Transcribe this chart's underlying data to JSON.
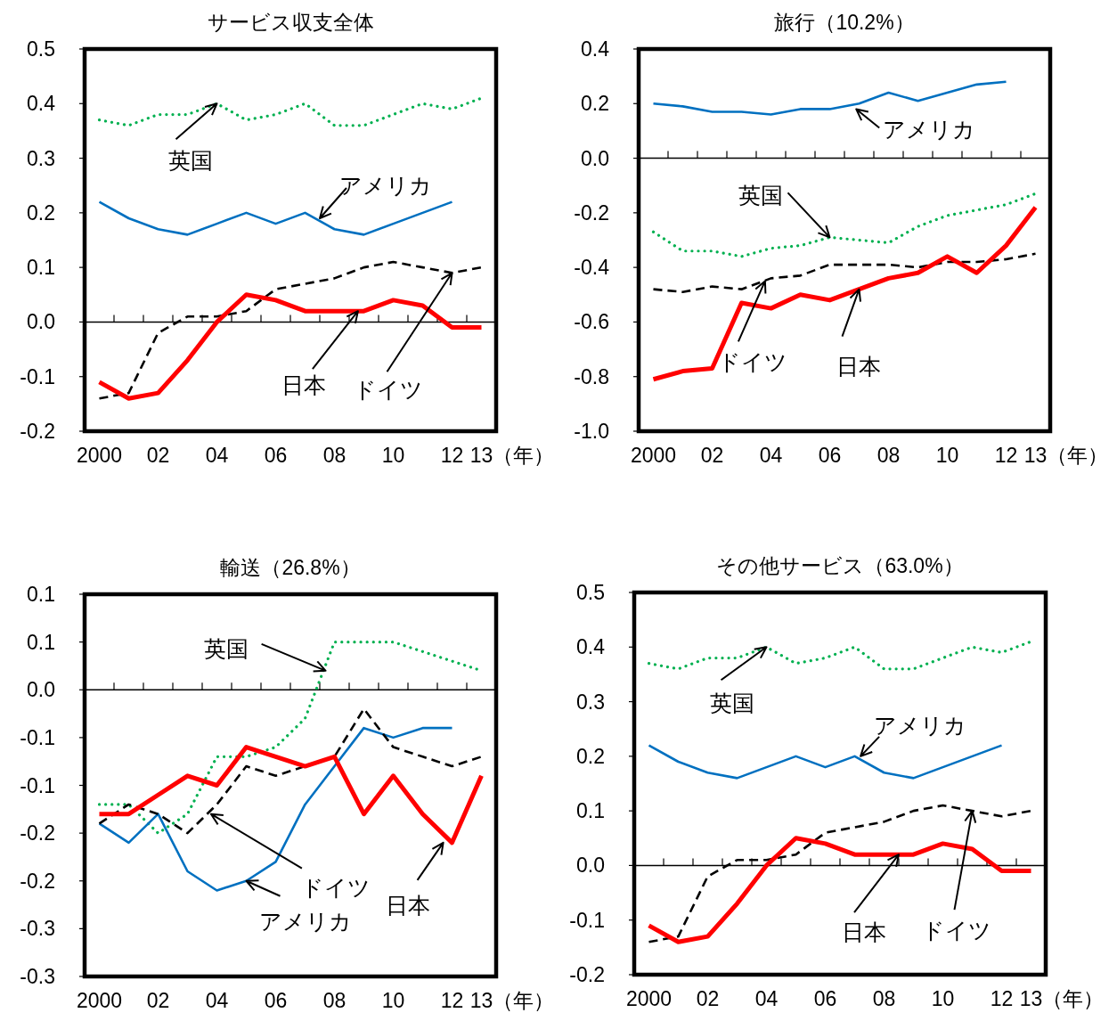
{
  "chart_data": [
    {
      "type": "line",
      "title": "サービス収支全体",
      "xlabel": "（年）",
      "x": [
        2000,
        2001,
        2002,
        2003,
        2004,
        2005,
        2006,
        2007,
        2008,
        2009,
        2010,
        2011,
        2012,
        2013
      ],
      "xlim": [
        1999.5,
        2013.5
      ],
      "xticks": [
        {
          "value": 2000,
          "label": "2000"
        },
        {
          "value": 2002,
          "label": "02"
        },
        {
          "value": 2004,
          "label": "04"
        },
        {
          "value": 2006,
          "label": "06"
        },
        {
          "value": 2008,
          "label": "08"
        },
        {
          "value": 2010,
          "label": "10"
        },
        {
          "value": 2012,
          "label": "12"
        },
        {
          "value": 2013,
          "label": "13"
        },
        {
          "value": 2000.5,
          "label": null
        },
        {
          "value": 2001.5,
          "label": null
        },
        {
          "value": 2002.5,
          "label": null
        },
        {
          "value": 2003.5,
          "label": null
        },
        {
          "value": 2004.5,
          "label": null
        },
        {
          "value": 2005.5,
          "label": null
        },
        {
          "value": 2006.5,
          "label": null
        },
        {
          "value": 2007.5,
          "label": null
        },
        {
          "value": 2008.5,
          "label": null
        },
        {
          "value": 2009.5,
          "label": null
        },
        {
          "value": 2010.5,
          "label": null
        },
        {
          "value": 2011.5,
          "label": null
        },
        {
          "value": 2012.5,
          "label": null
        }
      ],
      "ylim": [
        -0.2,
        0.5
      ],
      "yticks": [
        -0.2,
        -0.1,
        {
          "value": 0,
          "label": "0.0"
        },
        0.1,
        0.2,
        0.3,
        0.4,
        0.5
      ],
      "series": [
        {
          "color": "#00b050",
          "line_style": "dotted",
          "values": [
            0.37,
            0.36,
            0.38,
            0.38,
            0.4,
            0.37,
            0.38,
            0.4,
            0.36,
            0.36,
            0.38,
            0.4,
            0.39,
            0.41
          ]
        },
        {
          "color": "#0070c0",
          "line_style": "solid",
          "values": [
            0.22,
            0.19,
            0.17,
            0.16,
            0.18,
            0.2,
            0.18,
            0.2,
            0.17,
            0.16,
            0.18,
            0.2,
            0.22,
            null
          ]
        },
        {
          "color": "#000000",
          "line_style": "dashed",
          "values": [
            -0.14,
            -0.13,
            -0.02,
            0.01,
            0.01,
            0.02,
            0.06,
            0.07,
            0.08,
            0.1,
            0.11,
            0.1,
            0.09,
            0.1
          ]
        },
        {
          "color": "#ff0000",
          "line_style": "solid",
          "values": [
            -0.11,
            -0.14,
            -0.13,
            -0.07,
            0.0,
            0.05,
            0.04,
            0.02,
            0.02,
            0.02,
            0.04,
            0.03,
            -0.01,
            -0.01
          ]
        }
      ],
      "annotations": [
        {
          "text": "英国",
          "x": 2004,
          "y": 0.4
        },
        {
          "text": "アメリカ",
          "x": 2007.5,
          "y": 0.19
        },
        {
          "text": "ドイツ",
          "x": 2012,
          "y": 0.09
        },
        {
          "text": "日本",
          "x": 2008.8,
          "y": 0.02
        }
      ]
    },
    {
      "type": "line",
      "title": "旅行（10.2%）",
      "xlabel": "（年）",
      "x": [
        2000,
        2001,
        2002,
        2003,
        2004,
        2005,
        2006,
        2007,
        2008,
        2009,
        2010,
        2011,
        2012,
        2013
      ],
      "xlim": [
        1999.5,
        2013.5
      ],
      "xticks": [
        {
          "value": 2000,
          "label": "2000"
        },
        {
          "value": 2002,
          "label": "02"
        },
        {
          "value": 2004,
          "label": "04"
        },
        {
          "value": 2006,
          "label": "06"
        },
        {
          "value": 2008,
          "label": "08"
        },
        {
          "value": 2010,
          "label": "10"
        },
        {
          "value": 2012,
          "label": "12"
        },
        {
          "value": 2013,
          "label": "13"
        },
        {
          "value": 2000.5,
          "label": null
        },
        {
          "value": 2001.5,
          "label": null
        },
        {
          "value": 2002.5,
          "label": null
        },
        {
          "value": 2003.5,
          "label": null
        },
        {
          "value": 2004.5,
          "label": null
        },
        {
          "value": 2005.5,
          "label": null
        },
        {
          "value": 2006.5,
          "label": null
        },
        {
          "value": 2007.5,
          "label": null
        },
        {
          "value": 2008.5,
          "label": null
        },
        {
          "value": 2009.5,
          "label": null
        },
        {
          "value": 2010.5,
          "label": null
        },
        {
          "value": 2011.5,
          "label": null
        },
        {
          "value": 2012.5,
          "label": null
        }
      ],
      "ylim": [
        -1.0,
        0.4
      ],
      "yticks": [
        {
          "value": -1,
          "label": "-1.0"
        },
        -0.8,
        -0.6,
        -0.4,
        -0.2,
        {
          "value": 0,
          "label": "0.0"
        },
        0.2,
        0.4
      ],
      "series": [
        {
          "color": "#00b050",
          "line_style": "dotted",
          "values": [
            -0.27,
            -0.34,
            -0.34,
            -0.36,
            -0.33,
            -0.32,
            -0.29,
            -0.3,
            -0.31,
            -0.25,
            -0.21,
            -0.19,
            -0.17,
            -0.13
          ]
        },
        {
          "color": "#0070c0",
          "line_style": "solid",
          "values": [
            0.2,
            0.19,
            0.17,
            0.17,
            0.16,
            0.18,
            0.18,
            0.2,
            0.24,
            0.21,
            0.24,
            0.27,
            0.28,
            null
          ]
        },
        {
          "color": "#000000",
          "line_style": "dashed",
          "values": [
            -0.48,
            -0.49,
            -0.47,
            -0.48,
            -0.44,
            -0.43,
            -0.39,
            -0.39,
            -0.39,
            -0.4,
            -0.38,
            -0.38,
            -0.37,
            -0.35
          ]
        },
        {
          "color": "#ff0000",
          "line_style": "solid",
          "values": [
            -0.81,
            -0.78,
            -0.77,
            -0.53,
            -0.55,
            -0.5,
            -0.52,
            -0.48,
            -0.44,
            -0.42,
            -0.36,
            -0.42,
            -0.32,
            -0.18
          ]
        }
      ],
      "annotations": [
        {
          "text": "英国",
          "x": 2006,
          "y": -0.29
        },
        {
          "text": "アメリカ",
          "x": 2006.9,
          "y": 0.18
        },
        {
          "text": "ドイツ",
          "x": 2003.8,
          "y": -0.45
        },
        {
          "text": "日本",
          "x": 2007,
          "y": -0.48
        }
      ]
    },
    {
      "type": "line",
      "title": "輸送（26.8%）",
      "xlabel": "（年）",
      "x": [
        2000,
        2001,
        2002,
        2003,
        2004,
        2005,
        2006,
        2007,
        2008,
        2009,
        2010,
        2011,
        2012,
        2013
      ],
      "xlim": [
        1999.5,
        2013.5
      ],
      "xticks": [
        {
          "value": 2000,
          "label": "2000"
        },
        {
          "value": 2002,
          "label": "02"
        },
        {
          "value": 2004,
          "label": "04"
        },
        {
          "value": 2006,
          "label": "06"
        },
        {
          "value": 2008,
          "label": "08"
        },
        {
          "value": 2010,
          "label": "10"
        },
        {
          "value": 2012,
          "label": "12"
        },
        {
          "value": 2013,
          "label": "13"
        },
        {
          "value": 2000.5,
          "label": null
        },
        {
          "value": 2001.5,
          "label": null
        },
        {
          "value": 2002.5,
          "label": null
        },
        {
          "value": 2003.5,
          "label": null
        },
        {
          "value": 2004.5,
          "label": null
        },
        {
          "value": 2005.5,
          "label": null
        },
        {
          "value": 2006.5,
          "label": null
        },
        {
          "value": 2007.5,
          "label": null
        },
        {
          "value": 2008.5,
          "label": null
        },
        {
          "value": 2009.5,
          "label": null
        },
        {
          "value": 2010.5,
          "label": null
        },
        {
          "value": 2011.5,
          "label": null
        },
        {
          "value": 2012.5,
          "label": null
        }
      ],
      "ylim": [
        -0.3,
        0.1
      ],
      "yticks": [
        -0.3,
        {
          "value": -0.25,
          "label": "-0.3"
        },
        -0.2,
        {
          "value": -0.15,
          "label": "-0.2"
        },
        -0.1,
        {
          "value": -0.05,
          "label": "-0.1"
        },
        {
          "value": 0,
          "label": "0.0"
        },
        {
          "value": 0.05,
          "label": "0.1"
        },
        0.1
      ],
      "series": [
        {
          "color": "#00b050",
          "line_style": "dotted",
          "values": [
            -0.12,
            -0.12,
            -0.15,
            -0.13,
            -0.07,
            -0.07,
            -0.06,
            -0.03,
            0.05,
            0.05,
            0.05,
            0.04,
            0.03,
            0.02
          ]
        },
        {
          "color": "#0070c0",
          "line_style": "solid",
          "values": [
            -0.14,
            -0.16,
            -0.13,
            -0.19,
            -0.21,
            -0.2,
            -0.18,
            -0.12,
            -0.08,
            -0.04,
            -0.05,
            -0.04,
            -0.04,
            null
          ]
        },
        {
          "color": "#000000",
          "line_style": "dashed",
          "values": [
            -0.14,
            -0.12,
            -0.13,
            -0.15,
            -0.12,
            -0.08,
            -0.09,
            -0.08,
            -0.07,
            -0.02,
            -0.06,
            -0.07,
            -0.08,
            -0.07
          ]
        },
        {
          "color": "#ff0000",
          "line_style": "solid",
          "values": [
            -0.13,
            -0.13,
            -0.11,
            -0.09,
            -0.1,
            -0.06,
            -0.07,
            -0.08,
            -0.07,
            -0.13,
            -0.09,
            -0.13,
            -0.16,
            -0.09
          ]
        }
      ],
      "annotations": [
        {
          "text": "英国",
          "x": 2007.7,
          "y": 0.02
        },
        {
          "text": "アメリカ",
          "x": 2005,
          "y": -0.2
        },
        {
          "text": "ドイツ",
          "x": 2003.8,
          "y": -0.13
        },
        {
          "text": "日本",
          "x": 2011.7,
          "y": -0.16
        }
      ]
    },
    {
      "type": "line",
      "title": "その他サービス（63.0%）",
      "xlabel": "（年）",
      "x": [
        2000,
        2001,
        2002,
        2003,
        2004,
        2005,
        2006,
        2007,
        2008,
        2009,
        2010,
        2011,
        2012,
        2013
      ],
      "xlim": [
        1999.5,
        2013.5
      ],
      "xticks": [
        {
          "value": 2000,
          "label": "2000"
        },
        {
          "value": 2002,
          "label": "02"
        },
        {
          "value": 2004,
          "label": "04"
        },
        {
          "value": 2006,
          "label": "06"
        },
        {
          "value": 2008,
          "label": "08"
        },
        {
          "value": 2010,
          "label": "10"
        },
        {
          "value": 2012,
          "label": "12"
        },
        {
          "value": 2013,
          "label": "13"
        },
        {
          "value": 2000.5,
          "label": null
        },
        {
          "value": 2001.5,
          "label": null
        },
        {
          "value": 2002.5,
          "label": null
        },
        {
          "value": 2003.5,
          "label": null
        },
        {
          "value": 2004.5,
          "label": null
        },
        {
          "value": 2005.5,
          "label": null
        },
        {
          "value": 2006.5,
          "label": null
        },
        {
          "value": 2007.5,
          "label": null
        },
        {
          "value": 2008.5,
          "label": null
        },
        {
          "value": 2009.5,
          "label": null
        },
        {
          "value": 2010.5,
          "label": null
        },
        {
          "value": 2011.5,
          "label": null
        },
        {
          "value": 2012.5,
          "label": null
        }
      ],
      "ylim": [
        -0.2,
        0.5
      ],
      "yticks": [
        -0.2,
        -0.1,
        {
          "value": 0,
          "label": "0.0"
        },
        0.1,
        0.2,
        0.3,
        0.4,
        0.5
      ],
      "series": [
        {
          "color": "#00b050",
          "line_style": "dotted",
          "values": [
            0.37,
            0.36,
            0.38,
            0.38,
            0.4,
            0.37,
            0.38,
            0.4,
            0.36,
            0.36,
            0.38,
            0.4,
            0.39,
            0.41
          ]
        },
        {
          "color": "#0070c0",
          "line_style": "solid",
          "values": [
            0.22,
            0.19,
            0.17,
            0.16,
            0.18,
            0.2,
            0.18,
            0.2,
            0.17,
            0.16,
            0.18,
            0.2,
            0.22,
            null
          ]
        },
        {
          "color": "#000000",
          "line_style": "dashed",
          "values": [
            -0.14,
            -0.13,
            -0.02,
            0.01,
            0.01,
            0.02,
            0.06,
            0.07,
            0.08,
            0.1,
            0.11,
            0.1,
            0.09,
            0.1
          ]
        },
        {
          "color": "#ff0000",
          "line_style": "solid",
          "values": [
            -0.11,
            -0.14,
            -0.13,
            -0.07,
            0.0,
            0.05,
            0.04,
            0.02,
            0.02,
            0.02,
            0.04,
            0.03,
            -0.01,
            -0.01
          ]
        }
      ],
      "annotations": [
        {
          "text": "英国",
          "x": 2004,
          "y": 0.4
        },
        {
          "text": "アメリカ",
          "x": 2007.2,
          "y": 0.2
        },
        {
          "text": "ドイツ",
          "x": 2011,
          "y": 0.1
        },
        {
          "text": "日本",
          "x": 2008.5,
          "y": 0.02
        }
      ]
    }
  ]
}
